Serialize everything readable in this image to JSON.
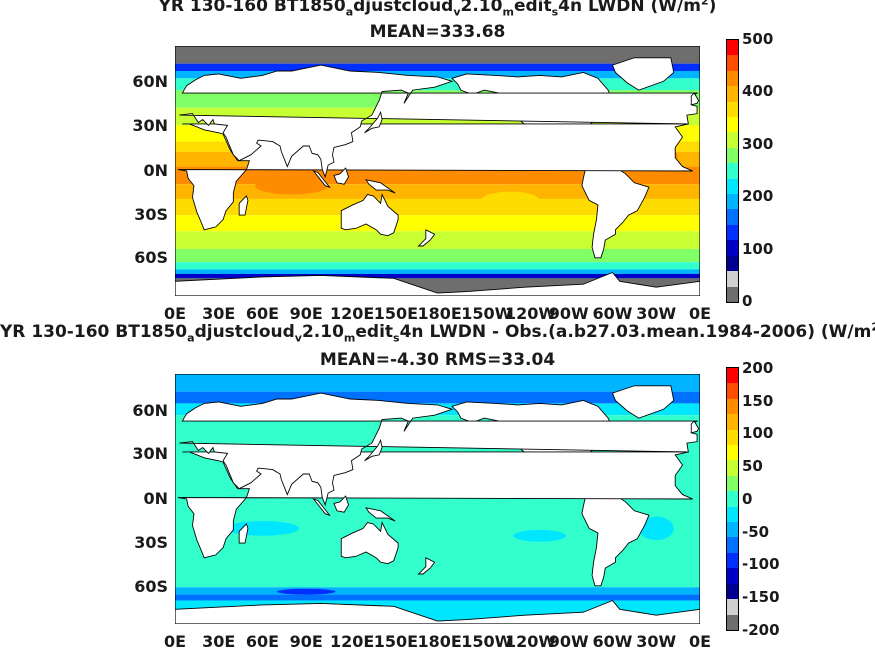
{
  "panels": [
    {
      "title_line1_parts": [
        "YR 130-160 BT1850",
        "a",
        "djustcloud",
        "v",
        "2.10",
        "m",
        "edit",
        "s",
        "4n LWDN (W/m",
        "2",
        ")"
      ],
      "title_line2": "MEAN=333.68",
      "yticks": [
        "60N",
        "30N",
        "0N",
        "30S",
        "60S"
      ],
      "xticks": [
        "0E",
        "30E",
        "60E",
        "90E",
        "120E",
        "150E",
        "180E",
        "150W",
        "120W",
        "90W",
        "60W",
        "30W",
        "0E"
      ],
      "colorbar_labels": [
        "500",
        "400",
        "300",
        "200",
        "100",
        "0"
      ]
    },
    {
      "title_line1_parts": [
        "YR 130-160 BT1850",
        "a",
        "djustcloud",
        "v",
        "2.10",
        "m",
        "edit",
        "s",
        "4n LWDN - Obs.(a.b27.03.mean.1984-2006) (W/m",
        "2",
        ")"
      ],
      "title_line2": "MEAN=-4.30 RMS=33.04",
      "yticks": [
        "60N",
        "30N",
        "0N",
        "30S",
        "60S"
      ],
      "xticks": [
        "0E",
        "30E",
        "60E",
        "90E",
        "120E",
        "150E",
        "180E",
        "150W",
        "120W",
        "90W",
        "60W",
        "30W",
        "0E"
      ],
      "colorbar_labels": [
        "200",
        "150",
        "100",
        "50",
        "0",
        "-50",
        "-100",
        "-150",
        "-200"
      ]
    }
  ],
  "colors": {
    "land": "#ffffff",
    "missing": "#6e6e6e",
    "colorbar_top_to_bottom": [
      "#ff0000",
      "#ff4d00",
      "#ff8c00",
      "#ffb400",
      "#ffdc00",
      "#ffff00",
      "#c8ff33",
      "#80ff66",
      "#33ffcc",
      "#00e6ff",
      "#00b4ff",
      "#0070ff",
      "#0030ff",
      "#0000c8",
      "#000090",
      "#d0d0d0",
      "#6e6e6e"
    ]
  },
  "chart_data": [
    {
      "type": "heatmap",
      "title": "YR 130-160 BT1850_adjustcloud_v2.10_medit_s4n LWDN (W/m2)",
      "subtitle": "MEAN=333.68",
      "x_ticks": [
        "0E",
        "30E",
        "60E",
        "90E",
        "120E",
        "150E",
        "180E",
        "150W",
        "120W",
        "90W",
        "60W",
        "30W",
        "0E"
      ],
      "y_ticks": [
        "60N",
        "30N",
        "0N",
        "30S",
        "60S"
      ],
      "colorbar_range": [
        0,
        500
      ],
      "colorbar_ticks": [
        0,
        100,
        200,
        300,
        400,
        500
      ],
      "zonal_profile_W_m2": [
        {
          "lat": 80,
          "value": 150
        },
        {
          "lat": 70,
          "value": 230
        },
        {
          "lat": 60,
          "value": 270
        },
        {
          "lat": 45,
          "value": 300
        },
        {
          "lat": 30,
          "value": 340
        },
        {
          "lat": 15,
          "value": 380
        },
        {
          "lat": 0,
          "value": 400
        },
        {
          "lat": -15,
          "value": 360
        },
        {
          "lat": -30,
          "value": 330
        },
        {
          "lat": -45,
          "value": 300
        },
        {
          "lat": -60,
          "value": 270
        },
        {
          "lat": -70,
          "value": 120
        }
      ]
    },
    {
      "type": "heatmap",
      "title": "YR 130-160 BT1850_adjustcloud_v2.10_medit_s4n LWDN - Obs.(a.b27.03.mean.1984-2006) (W/m2)",
      "subtitle": "MEAN=-4.30 RMS=33.04",
      "x_ticks": [
        "0E",
        "30E",
        "60E",
        "90E",
        "120E",
        "150E",
        "180E",
        "150W",
        "120W",
        "90W",
        "60W",
        "30W",
        "0E"
      ],
      "y_ticks": [
        "60N",
        "30N",
        "0N",
        "30S",
        "60S"
      ],
      "colorbar_range": [
        -200,
        200
      ],
      "colorbar_ticks": [
        -200,
        -150,
        -100,
        -50,
        0,
        50,
        100,
        150,
        200
      ],
      "zonal_profile_W_m2": [
        {
          "lat": 75,
          "value": -60
        },
        {
          "lat": 60,
          "value": -20
        },
        {
          "lat": 45,
          "value": -10
        },
        {
          "lat": 30,
          "value": -15
        },
        {
          "lat": 0,
          "value": -5
        },
        {
          "lat": -30,
          "value": -15
        },
        {
          "lat": -55,
          "value": -10
        },
        {
          "lat": -62,
          "value": -60
        }
      ]
    }
  ]
}
